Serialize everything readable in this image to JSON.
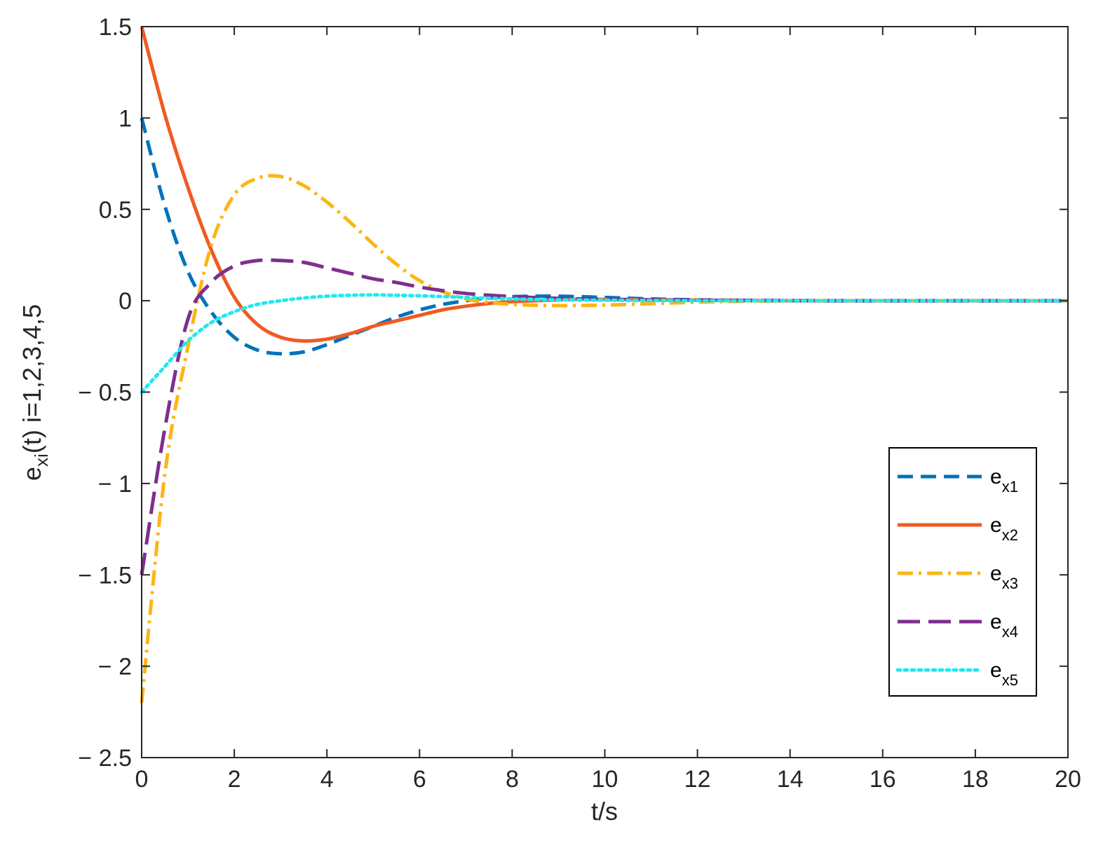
{
  "chart_data": {
    "type": "line",
    "xlabel": "t/s",
    "ylabel_main": "e",
    "ylabel_sub": "xi",
    "ylabel_rest": "(t) i=1,2,3,4,5",
    "xlim": [
      0,
      20
    ],
    "ylim": [
      -2.5,
      1.5
    ],
    "xticks": [
      0,
      2,
      4,
      6,
      8,
      10,
      12,
      14,
      16,
      18,
      20
    ],
    "yticks": [
      1.5,
      1,
      0.5,
      0,
      -0.5,
      -1,
      -1.5,
      -2,
      -2.5
    ],
    "xtick_labels": [
      "0",
      "2",
      "4",
      "6",
      "8",
      "10",
      "12",
      "14",
      "16",
      "18",
      "20"
    ],
    "ytick_labels": [
      "1.5",
      "1",
      "0.5",
      "0",
      "− 0.5",
      "− 1",
      "− 1.5",
      "− 2",
      "− 2.5"
    ],
    "grid": false,
    "legend_position": "lower-right",
    "x": [
      0,
      0.5,
      1,
      1.5,
      2,
      2.5,
      3,
      3.5,
      4,
      4.5,
      5,
      5.5,
      6,
      6.5,
      7,
      7.5,
      8,
      8.5,
      9,
      9.5,
      10,
      11,
      12,
      13,
      14,
      15,
      16,
      17,
      18,
      19,
      20
    ],
    "series": [
      {
        "label_main": "e",
        "label_sub": "x1",
        "color": "#0072BD",
        "dash": "dashed",
        "values": [
          1.0,
          0.52,
          0.16,
          -0.06,
          -0.2,
          -0.27,
          -0.29,
          -0.28,
          -0.24,
          -0.19,
          -0.14,
          -0.09,
          -0.05,
          -0.02,
          0.0,
          0.015,
          0.022,
          0.025,
          0.025,
          0.022,
          0.018,
          0.01,
          0.005,
          0.002,
          0.0,
          0.0,
          0.0,
          0.0,
          0.0,
          0.0,
          0.0
        ]
      },
      {
        "label_main": "e",
        "label_sub": "x2",
        "color": "#F15A22",
        "dash": "solid",
        "values": [
          1.5,
          1.02,
          0.62,
          0.28,
          0.02,
          -0.13,
          -0.2,
          -0.22,
          -0.21,
          -0.18,
          -0.14,
          -0.11,
          -0.08,
          -0.05,
          -0.03,
          -0.015,
          -0.005,
          0.0,
          0.005,
          0.007,
          0.007,
          0.005,
          0.003,
          0.001,
          0.0,
          0.0,
          0.0,
          0.0,
          0.0,
          0.0,
          0.0
        ]
      },
      {
        "label_main": "e",
        "label_sub": "x3",
        "color": "#FDB515",
        "dash": "dashdot",
        "values": [
          -2.2,
          -0.95,
          -0.25,
          0.3,
          0.58,
          0.67,
          0.68,
          0.63,
          0.54,
          0.43,
          0.31,
          0.2,
          0.11,
          0.05,
          0.01,
          -0.01,
          -0.02,
          -0.025,
          -0.027,
          -0.026,
          -0.024,
          -0.016,
          -0.008,
          -0.003,
          -0.001,
          0.0,
          0.0,
          0.0,
          0.0,
          0.0,
          0.0
        ]
      },
      {
        "label_main": "e",
        "label_sub": "x4",
        "color": "#7E2F8E",
        "dash": "longdash",
        "values": [
          -1.5,
          -0.7,
          -0.1,
          0.1,
          0.19,
          0.22,
          0.22,
          0.21,
          0.18,
          0.15,
          0.12,
          0.1,
          0.075,
          0.055,
          0.04,
          0.03,
          0.023,
          0.017,
          0.013,
          0.01,
          0.008,
          0.005,
          0.003,
          0.002,
          0.001,
          0.0,
          0.0,
          0.0,
          0.0,
          0.0,
          0.0
        ]
      },
      {
        "label_main": "e",
        "label_sub": "x5",
        "color": "#22E8F0",
        "dash": "dotted",
        "values": [
          -0.5,
          -0.36,
          -0.22,
          -0.12,
          -0.06,
          -0.02,
          0.0,
          0.015,
          0.025,
          0.03,
          0.032,
          0.03,
          0.027,
          0.023,
          0.018,
          0.014,
          0.01,
          0.007,
          0.005,
          0.004,
          0.003,
          0.001,
          0.0,
          0.0,
          0.0,
          0.0,
          0.0,
          0.0,
          0.0,
          0.0,
          0.0
        ]
      }
    ]
  }
}
